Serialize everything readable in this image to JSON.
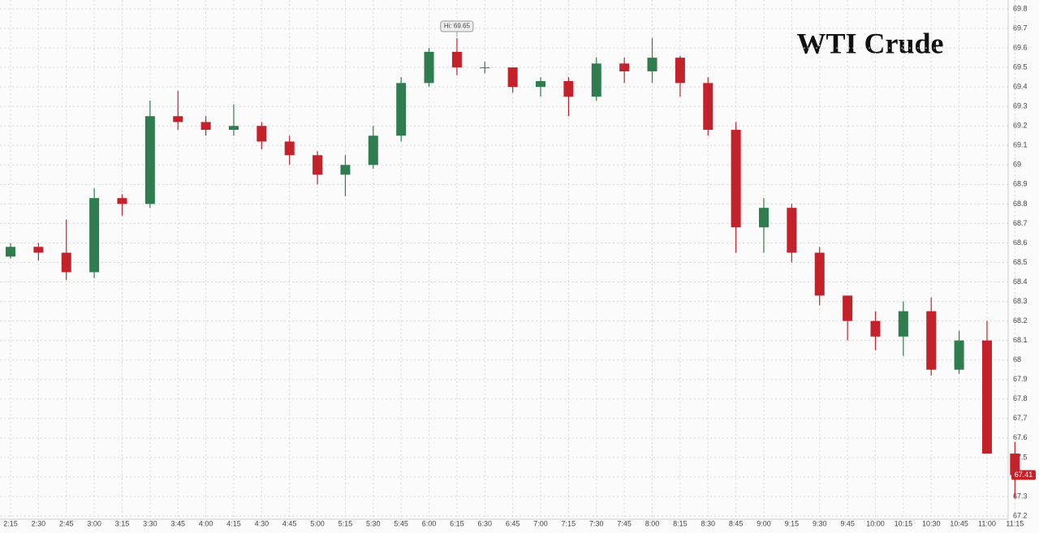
{
  "chart_data": {
    "type": "candlestick",
    "title": "WTI Crude",
    "categories": [
      "2:15",
      "2:30",
      "2:45",
      "3:00",
      "3:15",
      "3:30",
      "3:45",
      "4:00",
      "4:15",
      "4:30",
      "4:45",
      "5:00",
      "5:15",
      "5:30",
      "5:45",
      "6:00",
      "6:15",
      "6:30",
      "6:45",
      "7:00",
      "7:15",
      "7:30",
      "7:45",
      "8:00",
      "8:15",
      "8:30",
      "8:45",
      "9:00",
      "9:15",
      "9:30",
      "9:45",
      "10:00",
      "10:15",
      "10:30",
      "10:45",
      "11:00",
      "11:15"
    ],
    "open": [
      68.53,
      68.58,
      68.55,
      68.45,
      68.83,
      68.8,
      69.25,
      69.22,
      69.18,
      69.2,
      69.12,
      69.05,
      68.95,
      69.0,
      69.15,
      69.42,
      69.58,
      69.5,
      69.5,
      69.4,
      69.43,
      69.35,
      69.52,
      69.48,
      69.55,
      69.42,
      69.18,
      68.68,
      68.78,
      68.55,
      68.33,
      68.2,
      68.12,
      68.25,
      67.95,
      68.1,
      67.52
    ],
    "high": [
      68.6,
      68.6,
      68.72,
      68.88,
      68.85,
      69.33,
      69.38,
      69.25,
      69.31,
      69.22,
      69.15,
      69.07,
      69.05,
      69.2,
      69.45,
      69.6,
      69.65,
      69.53,
      69.5,
      69.45,
      69.45,
      69.55,
      69.55,
      69.65,
      69.56,
      69.45,
      69.22,
      68.83,
      68.8,
      68.58,
      68.33,
      68.25,
      68.3,
      68.32,
      68.15,
      68.2,
      67.58
    ],
    "low": [
      68.52,
      68.51,
      68.41,
      68.42,
      68.74,
      68.78,
      69.18,
      69.15,
      69.15,
      69.08,
      69.0,
      68.9,
      68.84,
      68.98,
      69.12,
      69.4,
      69.46,
      69.47,
      69.37,
      69.35,
      69.25,
      69.33,
      69.42,
      69.42,
      69.35,
      69.15,
      68.55,
      68.55,
      68.5,
      68.28,
      68.1,
      68.05,
      68.02,
      67.92,
      67.93,
      67.52,
      67.29
    ],
    "close": [
      68.58,
      68.55,
      68.45,
      68.83,
      68.8,
      69.25,
      69.22,
      69.18,
      69.2,
      69.12,
      69.05,
      68.95,
      69.0,
      69.15,
      69.42,
      69.58,
      69.5,
      69.5,
      69.4,
      69.43,
      69.35,
      69.52,
      69.48,
      69.55,
      69.42,
      69.18,
      68.68,
      68.78,
      68.55,
      68.33,
      68.2,
      68.12,
      68.25,
      67.95,
      68.1,
      67.52,
      67.41
    ],
    "up_color": "#2f7d4f",
    "down_color": "#c4222b",
    "ylim": [
      67.2,
      69.8
    ],
    "yticks": [
      67.2,
      67.3,
      67.4,
      67.5,
      67.6,
      67.7,
      67.8,
      67.9,
      68,
      68.1,
      68.2,
      68.3,
      68.4,
      68.5,
      68.6,
      68.7,
      68.8,
      68.9,
      69,
      69.1,
      69.2,
      69.3,
      69.4,
      69.5,
      69.6,
      69.7,
      69.8
    ],
    "grid": true,
    "annotation": {
      "label": "Hi: 69.65",
      "category": "6:15",
      "value": 69.65
    },
    "last_price": 67.41
  }
}
